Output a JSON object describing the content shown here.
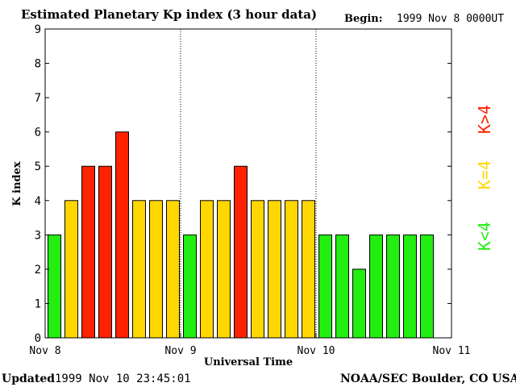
{
  "header": {
    "title": "Estimated Planetary Kp index (3 hour data)",
    "begin_label": "Begin:",
    "begin_value": "1999 Nov 8 0000UT"
  },
  "footer": {
    "updated_label": "Updated",
    "updated_value": "1999 Nov 10 23:45:01",
    "credit": "NOAA/SEC Boulder, CO USA"
  },
  "legend": [
    {
      "label": "K>4",
      "color": "#ff2200"
    },
    {
      "label": "K=4",
      "color": "#ffd700"
    },
    {
      "label": "K<4",
      "color": "#22ee11"
    }
  ],
  "chart_data": {
    "type": "bar",
    "title": "Estimated Planetary Kp index (3 hour data)",
    "xlabel": "Universal Time",
    "ylabel": "K index",
    "ylim": [
      0,
      9
    ],
    "yticks": [
      0,
      1,
      2,
      3,
      4,
      5,
      6,
      7,
      8,
      9
    ],
    "xticks": [
      "Nov 8",
      "Nov 9",
      "Nov 10",
      "Nov 11"
    ],
    "day_separators": [
      "Nov 9",
      "Nov 10"
    ],
    "interval_hours": 3,
    "values": [
      3,
      4,
      5,
      5,
      6,
      4,
      4,
      4,
      3,
      4,
      4,
      5,
      4,
      4,
      4,
      4,
      3,
      3,
      2,
      3,
      3,
      3,
      3
    ],
    "colors": {
      "low": "#22ee11",
      "equal": "#ffd700",
      "high": "#ff2200"
    }
  }
}
